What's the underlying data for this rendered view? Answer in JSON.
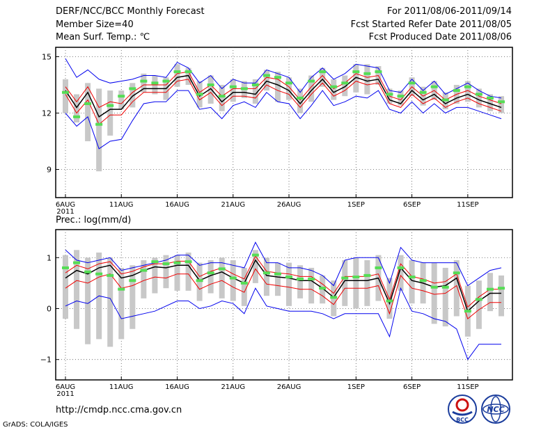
{
  "header": {
    "title": "DERF/NCC/BCC Monthly Forecast",
    "member_size": "Member Size=40",
    "variable": "Mean Surf. Temp.: ℃",
    "period": "For 2011/08/06-2011/09/14",
    "start_date": "Fcst Started Refer Date 2011/08/05",
    "produced_date": "Fcst Produced Date 2011/08/06"
  },
  "footer": {
    "url": "http://cmdp.ncc.cma.gov.cn",
    "credit": "GrADS: COLA/IGES",
    "logo_left_text": "BCC",
    "logo_right_text": "NCC"
  },
  "colors": {
    "spread": "#0000ee",
    "quartile": "#ee0000",
    "mean": "#000000",
    "median": "#55dd55",
    "box": "#c8c8c8"
  },
  "chart_data": [
    {
      "type": "box-ensemble",
      "title": "Mean Surf. Temp.: ℃",
      "x_tick_labels": [
        "6AUG",
        "11AUG",
        "16AUG",
        "21AUG",
        "26AUG",
        "1SEP",
        "6SEP",
        "11SEP"
      ],
      "x_tick_days": [
        1,
        6,
        11,
        16,
        21,
        27,
        32,
        37
      ],
      "year_label": "2011",
      "days": 40,
      "ylim": [
        7.5,
        15.5
      ],
      "yticks": [
        9,
        12,
        15
      ],
      "ytick_labels": [
        "9",
        "12",
        "15"
      ],
      "series": {
        "mean": [
          13.2,
          12.3,
          13.1,
          11.8,
          12.2,
          12.2,
          12.9,
          13.3,
          13.3,
          13.3,
          13.9,
          14.0,
          12.9,
          13.3,
          12.6,
          13.1,
          13.1,
          13.0,
          13.7,
          13.5,
          13.2,
          12.5,
          13.2,
          13.8,
          13.1,
          13.4,
          13.9,
          13.7,
          13.8,
          12.7,
          12.5,
          13.2,
          12.7,
          13.0,
          12.5,
          12.8,
          13.0,
          12.7,
          12.5,
          12.3
        ],
        "upper": [
          14.9,
          13.9,
          14.3,
          13.8,
          13.6,
          13.7,
          13.8,
          14.0,
          14.0,
          13.9,
          14.7,
          14.4,
          13.6,
          14.0,
          13.3,
          13.8,
          13.6,
          13.6,
          14.3,
          14.1,
          13.9,
          13.1,
          13.9,
          14.4,
          13.8,
          14.1,
          14.6,
          14.5,
          14.4,
          13.2,
          13.1,
          13.8,
          13.2,
          13.7,
          13.0,
          13.3,
          13.6,
          13.2,
          12.9,
          12.8
        ],
        "lower": [
          12.0,
          11.3,
          11.8,
          10.1,
          10.5,
          10.6,
          11.6,
          12.5,
          12.6,
          12.6,
          13.2,
          13.2,
          12.2,
          12.3,
          11.7,
          12.4,
          12.6,
          12.3,
          13.1,
          12.6,
          12.5,
          11.7,
          12.4,
          13.2,
          12.4,
          12.6,
          12.9,
          12.8,
          13.2,
          12.2,
          12.0,
          12.6,
          12.0,
          12.5,
          12.0,
          12.3,
          12.3,
          12.1,
          11.9,
          11.7
        ],
        "q_upper": [
          13.4,
          12.6,
          13.4,
          12.3,
          12.6,
          12.5,
          13.1,
          13.5,
          13.5,
          13.5,
          14.1,
          14.2,
          13.1,
          13.5,
          12.9,
          13.3,
          13.3,
          13.3,
          13.9,
          13.8,
          13.4,
          12.7,
          13.4,
          14.0,
          13.3,
          13.6,
          14.1,
          13.9,
          14.0,
          12.9,
          12.7,
          13.4,
          12.9,
          13.2,
          12.7,
          13.0,
          13.2,
          12.9,
          12.7,
          12.5
        ],
        "q_lower": [
          13.0,
          12.0,
          12.7,
          11.4,
          11.9,
          11.9,
          12.6,
          13.1,
          13.1,
          13.1,
          13.7,
          13.8,
          12.7,
          13.1,
          12.4,
          12.9,
          12.9,
          12.8,
          13.5,
          13.2,
          13.0,
          12.3,
          13.0,
          13.6,
          12.9,
          13.2,
          13.7,
          13.5,
          13.6,
          12.5,
          12.3,
          13.0,
          12.5,
          12.8,
          12.3,
          12.6,
          12.8,
          12.5,
          12.3,
          12.1
        ],
        "median": [
          13.1,
          11.8,
          12.5,
          11.4,
          12.4,
          12.9,
          13.3,
          13.7,
          13.6,
          13.7,
          14.2,
          14.2,
          13.0,
          13.5,
          12.9,
          13.4,
          13.3,
          13.5,
          14.0,
          13.9,
          13.6,
          12.8,
          13.7,
          14.2,
          13.4,
          13.6,
          14.2,
          14.1,
          14.2,
          13.0,
          12.9,
          13.6,
          13.1,
          13.4,
          12.7,
          13.2,
          13.4,
          13.0,
          12.8,
          12.6
        ],
        "box_top": [
          13.8,
          13.0,
          13.6,
          13.3,
          13.2,
          13.2,
          13.6,
          14.1,
          14.0,
          13.9,
          14.6,
          14.4,
          13.7,
          14.0,
          13.5,
          13.8,
          13.7,
          13.8,
          14.3,
          14.2,
          13.9,
          13.3,
          14.0,
          14.4,
          13.8,
          14.0,
          14.6,
          14.6,
          14.5,
          13.3,
          13.2,
          13.9,
          13.4,
          13.7,
          13.1,
          13.5,
          13.7,
          13.3,
          13.0,
          12.9
        ],
        "box_bot": [
          12.0,
          11.5,
          10.5,
          8.9,
          10.8,
          12.2,
          12.3,
          13.1,
          13.0,
          12.7,
          13.4,
          13.5,
          12.3,
          12.5,
          12.1,
          12.6,
          12.8,
          12.5,
          13.2,
          12.6,
          12.7,
          12.0,
          12.6,
          13.4,
          12.7,
          12.9,
          13.1,
          13.0,
          13.5,
          12.5,
          12.4,
          12.9,
          12.4,
          12.7,
          12.2,
          12.5,
          12.6,
          12.3,
          12.1,
          12.0
        ]
      }
    },
    {
      "type": "box-ensemble",
      "title": "Prec.: log(mm/d)",
      "x_tick_labels": [
        "6AUG",
        "11AUG",
        "16AUG",
        "21AUG",
        "26AUG",
        "1SEP",
        "6SEP",
        "11SEP"
      ],
      "x_tick_days": [
        1,
        6,
        11,
        16,
        21,
        27,
        32,
        37
      ],
      "year_label": "2011",
      "days": 40,
      "ylim": [
        -1.4,
        1.55
      ],
      "yticks": [
        -1,
        0,
        1
      ],
      "ytick_labels": [
        "−1",
        "0",
        "1"
      ],
      "series": {
        "mean": [
          0.6,
          0.75,
          0.68,
          0.8,
          0.85,
          0.6,
          0.65,
          0.75,
          0.82,
          0.8,
          0.85,
          0.85,
          0.55,
          0.65,
          0.72,
          0.6,
          0.5,
          0.95,
          0.65,
          0.62,
          0.6,
          0.55,
          0.55,
          0.4,
          0.22,
          0.55,
          0.55,
          0.55,
          0.6,
          0.1,
          0.8,
          0.55,
          0.5,
          0.42,
          0.45,
          0.6,
          -0.05,
          0.15,
          0.3,
          0.3
        ],
        "upper": [
          1.15,
          0.95,
          0.9,
          0.95,
          1.0,
          0.75,
          0.8,
          0.85,
          0.9,
          0.95,
          1.05,
          1.05,
          0.85,
          0.9,
          0.9,
          0.85,
          0.8,
          1.3,
          0.9,
          0.9,
          0.8,
          0.8,
          0.75,
          0.65,
          0.45,
          0.95,
          1.0,
          1.0,
          1.0,
          0.5,
          1.2,
          0.95,
          0.9,
          0.9,
          0.9,
          0.9,
          0.45,
          0.6,
          0.75,
          0.8
        ],
        "lower": [
          0.05,
          0.15,
          0.1,
          0.25,
          0.2,
          -0.2,
          -0.15,
          -0.1,
          -0.05,
          0.05,
          0.15,
          0.15,
          0.0,
          0.05,
          0.15,
          0.1,
          -0.1,
          0.4,
          0.05,
          0.0,
          -0.05,
          -0.05,
          -0.05,
          -0.1,
          -0.2,
          -0.1,
          -0.1,
          -0.1,
          -0.1,
          -0.55,
          0.4,
          -0.05,
          -0.1,
          -0.2,
          -0.25,
          -0.4,
          -1.0,
          -0.7,
          -0.7,
          -0.7
        ],
        "q_upper": [
          0.7,
          0.85,
          0.78,
          0.88,
          0.92,
          0.68,
          0.73,
          0.82,
          0.88,
          0.88,
          0.93,
          0.93,
          0.63,
          0.73,
          0.8,
          0.68,
          0.58,
          1.03,
          0.73,
          0.7,
          0.68,
          0.63,
          0.63,
          0.48,
          0.3,
          0.63,
          0.63,
          0.63,
          0.68,
          0.18,
          0.88,
          0.63,
          0.58,
          0.5,
          0.53,
          0.68,
          0.03,
          0.23,
          0.38,
          0.38
        ],
        "q_lower": [
          0.4,
          0.55,
          0.5,
          0.62,
          0.68,
          0.4,
          0.45,
          0.55,
          0.62,
          0.6,
          0.68,
          0.68,
          0.38,
          0.48,
          0.55,
          0.42,
          0.32,
          0.78,
          0.48,
          0.45,
          0.42,
          0.38,
          0.38,
          0.25,
          0.08,
          0.4,
          0.4,
          0.4,
          0.45,
          -0.1,
          0.65,
          0.4,
          0.35,
          0.28,
          0.3,
          0.45,
          -0.2,
          -0.02,
          0.12,
          0.12
        ],
        "median": [
          0.8,
          0.9,
          0.72,
          0.68,
          0.65,
          0.38,
          0.55,
          0.75,
          0.92,
          0.88,
          0.9,
          0.92,
          0.55,
          0.7,
          0.78,
          0.6,
          0.5,
          1.05,
          0.7,
          0.68,
          0.62,
          0.58,
          0.58,
          0.4,
          0.22,
          0.6,
          0.62,
          0.65,
          0.8,
          0.15,
          0.8,
          0.62,
          0.55,
          0.42,
          0.42,
          0.7,
          -0.05,
          0.18,
          0.38,
          0.4
        ],
        "box_top": [
          1.05,
          1.15,
          1.0,
          1.1,
          1.0,
          0.8,
          0.85,
          0.95,
          1.0,
          1.05,
          1.05,
          1.1,
          0.9,
          0.95,
          1.0,
          0.95,
          0.8,
          1.15,
          1.0,
          0.9,
          0.9,
          0.85,
          0.8,
          0.65,
          0.55,
          0.95,
          1.0,
          0.95,
          1.05,
          0.6,
          1.05,
          0.95,
          0.9,
          0.9,
          0.8,
          0.95,
          0.45,
          0.55,
          0.7,
          0.65
        ],
        "box_bot": [
          -0.2,
          -0.4,
          -0.7,
          -0.6,
          -0.75,
          -0.6,
          -0.4,
          0.2,
          0.3,
          0.4,
          0.35,
          0.35,
          0.15,
          0.3,
          0.2,
          0.15,
          0.05,
          0.5,
          0.25,
          0.25,
          0.05,
          0.2,
          0.1,
          0.1,
          -0.15,
          0.05,
          0.0,
          0.05,
          0.15,
          -0.2,
          0.35,
          0.1,
          0.1,
          -0.3,
          -0.35,
          -0.15,
          -0.55,
          -0.4,
          -0.05,
          -0.15
        ]
      }
    }
  ]
}
